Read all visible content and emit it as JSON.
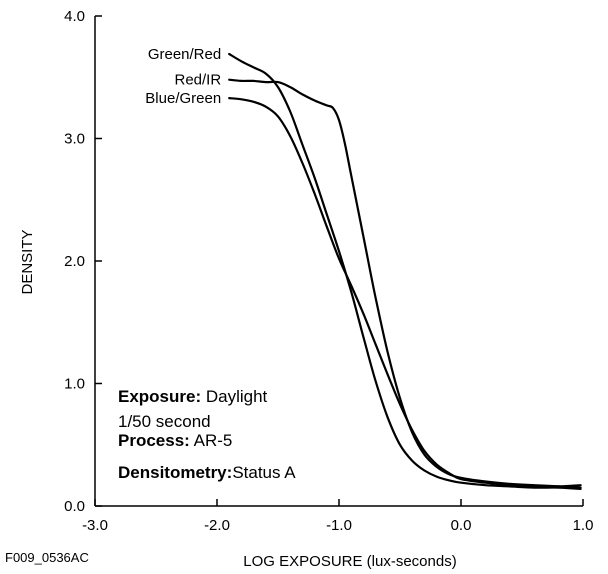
{
  "chart_data": {
    "type": "line",
    "xlabel": "LOG EXPOSURE (lux-seconds)",
    "ylabel": "DENSITY",
    "xlim": [
      -3.0,
      1.0
    ],
    "ylim": [
      0.0,
      4.0
    ],
    "xticks": [
      "-3.0",
      "-2.0",
      "-1.0",
      "0.0",
      "1.0"
    ],
    "yticks": [
      "0.0",
      "1.0",
      "2.0",
      "3.0",
      "4.0"
    ],
    "grid": false,
    "series": [
      {
        "name": "Green/Red",
        "x": [
          -1.9,
          -1.8,
          -1.7,
          -1.6,
          -1.5,
          -1.4,
          -1.3,
          -1.2,
          -1.1,
          -1.0,
          -0.9,
          -0.8,
          -0.7,
          -0.6,
          -0.5,
          -0.4,
          -0.3,
          -0.2,
          -0.1,
          0.0,
          0.2,
          0.4,
          0.6,
          0.8,
          0.98
        ],
        "y": [
          3.69,
          3.63,
          3.58,
          3.53,
          3.42,
          3.22,
          2.95,
          2.68,
          2.38,
          2.08,
          1.75,
          1.38,
          1.02,
          0.72,
          0.5,
          0.37,
          0.29,
          0.24,
          0.21,
          0.19,
          0.17,
          0.16,
          0.15,
          0.15,
          0.14
        ]
      },
      {
        "name": "Red/IR",
        "x": [
          -1.9,
          -1.8,
          -1.7,
          -1.6,
          -1.5,
          -1.4,
          -1.3,
          -1.2,
          -1.1,
          -1.05,
          -1.0,
          -0.95,
          -0.9,
          -0.8,
          -0.7,
          -0.6,
          -0.5,
          -0.4,
          -0.3,
          -0.2,
          -0.1,
          0.0,
          0.2,
          0.4,
          0.6,
          0.8,
          0.98
        ],
        "y": [
          3.48,
          3.47,
          3.47,
          3.46,
          3.46,
          3.42,
          3.36,
          3.31,
          3.27,
          3.25,
          3.15,
          2.95,
          2.7,
          2.2,
          1.7,
          1.25,
          0.88,
          0.6,
          0.42,
          0.32,
          0.26,
          0.23,
          0.2,
          0.18,
          0.17,
          0.16,
          0.15
        ]
      },
      {
        "name": "Blue/Green",
        "x": [
          -1.9,
          -1.8,
          -1.7,
          -1.6,
          -1.5,
          -1.4,
          -1.3,
          -1.2,
          -1.1,
          -1.0,
          -0.9,
          -0.8,
          -0.7,
          -0.6,
          -0.5,
          -0.4,
          -0.3,
          -0.2,
          -0.1,
          0.0,
          0.2,
          0.4,
          0.6,
          0.8,
          0.98
        ],
        "y": [
          3.33,
          3.32,
          3.3,
          3.26,
          3.18,
          3.02,
          2.8,
          2.55,
          2.28,
          2.02,
          1.8,
          1.57,
          1.32,
          1.07,
          0.83,
          0.62,
          0.45,
          0.34,
          0.27,
          0.22,
          0.19,
          0.17,
          0.16,
          0.16,
          0.17
        ]
      }
    ],
    "annotations": [
      {
        "bold": "Exposure:",
        "text": " Daylight"
      },
      {
        "bold": "",
        "text": "1/50 second"
      },
      {
        "bold": "Process:",
        "text": " AR-5"
      },
      {
        "bold": "Densitometry:",
        "text": "Status A"
      }
    ]
  },
  "figure_id": "F009_0536AC",
  "colors": {
    "line": "#000000",
    "axis": "#000000",
    "background": "#ffffff"
  }
}
